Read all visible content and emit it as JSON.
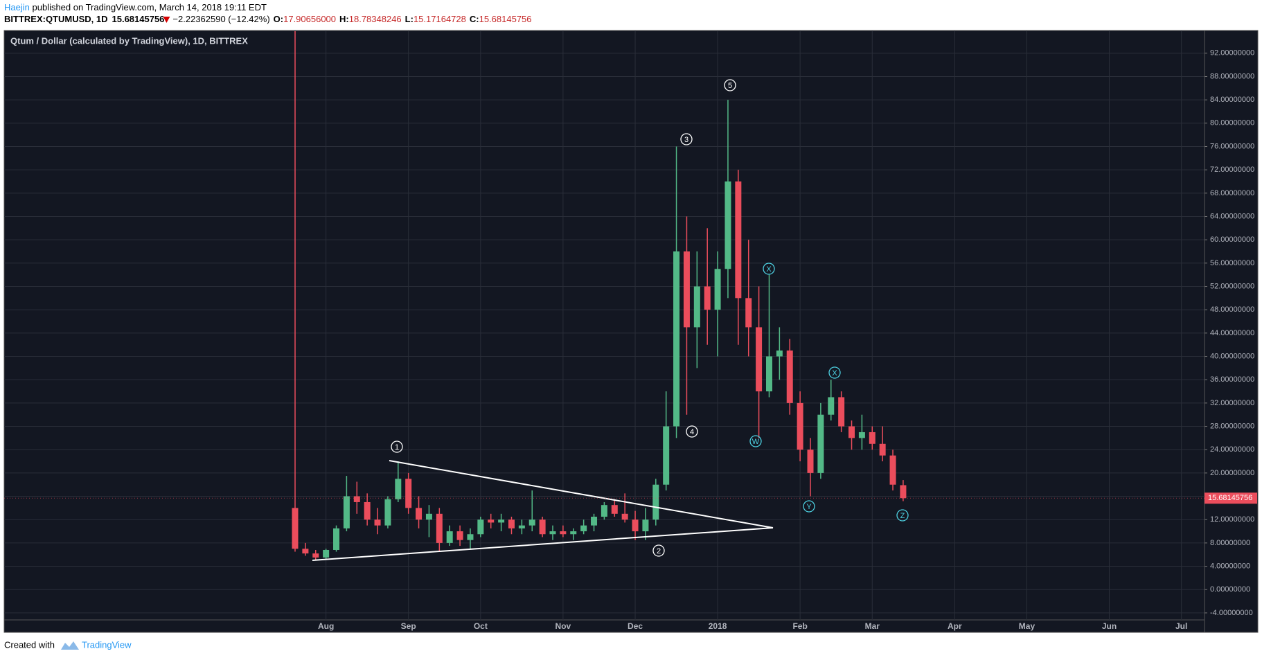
{
  "header": {
    "author": "Haejin",
    "published": "published on TradingView.com, March 14, 2018 19:11 EDT",
    "symbol": "BITTREX:QTUMUSD, 1D",
    "price": "15.68145756",
    "change": "−2.22362590 (−12.42%)",
    "ohlc": [
      {
        "key": "O:",
        "value": "17.90656000"
      },
      {
        "key": "H:",
        "value": "18.78348246"
      },
      {
        "key": "L:",
        "value": "15.17164728"
      },
      {
        "key": "C:",
        "value": "15.68145756"
      }
    ]
  },
  "chart_data": {
    "type": "candlestick",
    "title": "Qtum / Dollar (calculated by TradingView), 1D, BITTREX",
    "categories": [
      null,
      null,
      null,
      "Aug",
      null,
      null,
      null,
      null,
      null,
      null,
      null,
      "Sep",
      null,
      null,
      null,
      null,
      null,
      null,
      "Oct",
      null,
      null,
      null,
      null,
      null,
      null,
      null,
      "Nov",
      null,
      null,
      null,
      null,
      null,
      null,
      "Dec",
      null,
      null,
      null,
      null,
      null,
      null,
      null,
      "2018",
      null,
      null,
      null,
      null,
      null,
      null,
      null,
      "Feb",
      null,
      null,
      null,
      null,
      null,
      null,
      "Mar",
      null,
      null,
      null,
      null,
      null,
      null,
      null,
      "Apr",
      null,
      null,
      null,
      null,
      null,
      null,
      "May",
      null,
      null,
      null,
      null,
      null,
      null,
      null,
      "Jun",
      null,
      null,
      null,
      null,
      null,
      null,
      "Jul",
      null,
      null,
      null
    ],
    "open": [
      14,
      7,
      6.2,
      5.5,
      6.8,
      10.5,
      16,
      15,
      12,
      11,
      15.5,
      19,
      14,
      12,
      13,
      8,
      10,
      8.5,
      9.5,
      12,
      11.5,
      12,
      10.5,
      11,
      12,
      9.5,
      10,
      9.5,
      10,
      11,
      12.5,
      14.5,
      13,
      12,
      10,
      12,
      18,
      28,
      58,
      45,
      52,
      48,
      55,
      70,
      50,
      45,
      34,
      40,
      41,
      32,
      24,
      20,
      30,
      33,
      28,
      26,
      27,
      25,
      23,
      17.90656,
      null,
      null,
      null,
      null,
      null,
      null,
      null,
      null,
      null,
      null,
      null,
      null,
      null,
      null,
      null,
      null,
      null,
      null,
      null,
      null,
      null,
      null,
      null,
      null,
      null,
      null,
      null,
      null,
      null,
      null
    ],
    "high": [
      100,
      8,
      6.8,
      7,
      11,
      19.5,
      18.5,
      16.5,
      14,
      16,
      22,
      20,
      16,
      14.5,
      14,
      11,
      11,
      10.5,
      12.5,
      13,
      13,
      12.5,
      12,
      17,
      12.5,
      11,
      11,
      10.5,
      12,
      13,
      15,
      15.5,
      16.5,
      13.5,
      14,
      19,
      34,
      76,
      64,
      58,
      62,
      58,
      84,
      72,
      60,
      52,
      54,
      45,
      43,
      34,
      26,
      32,
      36,
      34,
      29,
      30,
      28,
      28,
      24,
      18.78348246,
      null,
      null,
      null,
      null,
      null,
      null,
      null,
      null,
      null,
      null,
      null,
      null,
      null,
      null,
      null,
      null,
      null,
      null,
      null,
      null,
      null,
      null,
      null,
      null,
      null,
      null,
      null,
      null,
      null,
      null
    ],
    "low": [
      6.5,
      5.8,
      5,
      5.2,
      6.5,
      10,
      13,
      11,
      9.5,
      10.5,
      15,
      13,
      10.5,
      9,
      6.5,
      7.5,
      7.5,
      7,
      9,
      10.5,
      10,
      9.5,
      9.5,
      10,
      9,
      8.5,
      9,
      8.5,
      9.5,
      10,
      12,
      12.5,
      11.5,
      8.5,
      8.5,
      11,
      17,
      26,
      30,
      38,
      42,
      40,
      50,
      42,
      40,
      26,
      33,
      36,
      30,
      22,
      16,
      19,
      29,
      27,
      24,
      24,
      24,
      22,
      17,
      15.17164728,
      null,
      null,
      null,
      null,
      null,
      null,
      null,
      null,
      null,
      null,
      null,
      null,
      null,
      null,
      null,
      null,
      null,
      null,
      null,
      null,
      null,
      null,
      null,
      null,
      null,
      null,
      null,
      null,
      null,
      null
    ],
    "close": [
      7,
      6.2,
      5.5,
      6.8,
      10.5,
      16,
      15,
      12,
      11,
      15.5,
      19,
      14,
      12,
      13,
      8,
      10,
      8.5,
      9.5,
      12,
      11.5,
      12,
      10.5,
      11,
      12,
      9.5,
      10,
      9.5,
      10,
      11,
      12.5,
      14.5,
      13,
      12,
      10,
      12,
      18,
      28,
      58,
      45,
      52,
      48,
      55,
      70,
      50,
      45,
      34,
      40,
      41,
      32,
      24,
      20,
      30,
      33,
      28,
      26,
      27,
      25,
      23,
      18,
      15.68145756,
      null,
      null,
      null,
      null,
      null,
      null,
      null,
      null,
      null,
      null,
      null,
      null,
      null,
      null,
      null,
      null,
      null,
      null,
      null,
      null,
      null,
      null,
      null,
      null,
      null,
      null,
      null,
      null,
      null,
      null
    ],
    "up_color": "#53b987",
    "down_color": "#eb4d5c",
    "last_price": 15.68145756,
    "last_price_label": "15.68145756",
    "ylim": [
      -5.2,
      95.9
    ],
    "yticks": [
      {
        "value": -4,
        "label": "-4.00000000"
      },
      {
        "value": 0,
        "label": "0.00000000"
      },
      {
        "value": 4,
        "label": "4.00000000"
      },
      {
        "value": 8,
        "label": "8.00000000"
      },
      {
        "value": 12,
        "label": "12.00000000"
      },
      {
        "value": 16,
        "label": "16.00000000"
      },
      {
        "value": 20,
        "label": "20.00000000"
      },
      {
        "value": 24,
        "label": "24.00000000"
      },
      {
        "value": 28,
        "label": "28.00000000"
      },
      {
        "value": 32,
        "label": "32.00000000"
      },
      {
        "value": 36,
        "label": "36.00000000"
      },
      {
        "value": 40,
        "label": "40.00000000"
      },
      {
        "value": 44,
        "label": "44.00000000"
      },
      {
        "value": 48,
        "label": "48.00000000"
      },
      {
        "value": 52,
        "label": "52.00000000"
      },
      {
        "value": 56,
        "label": "56.00000000"
      },
      {
        "value": 60,
        "label": "60.00000000"
      },
      {
        "value": 64,
        "label": "64.00000000"
      },
      {
        "value": 68,
        "label": "68.00000000"
      },
      {
        "value": 72,
        "label": "72.00000000"
      },
      {
        "value": 76,
        "label": "76.00000000"
      },
      {
        "value": 80,
        "label": "80.00000000"
      },
      {
        "value": 84,
        "label": "84.00000000"
      },
      {
        "value": 88,
        "label": "88.00000000"
      },
      {
        "value": 92,
        "label": "92.00000000"
      }
    ],
    "grid": true,
    "annotations": [
      "1",
      "2",
      "3",
      "4",
      "5",
      "W",
      "X",
      "X",
      "Y",
      "Z"
    ]
  },
  "footer": {
    "created": "Created with",
    "brand": "TradingView"
  }
}
